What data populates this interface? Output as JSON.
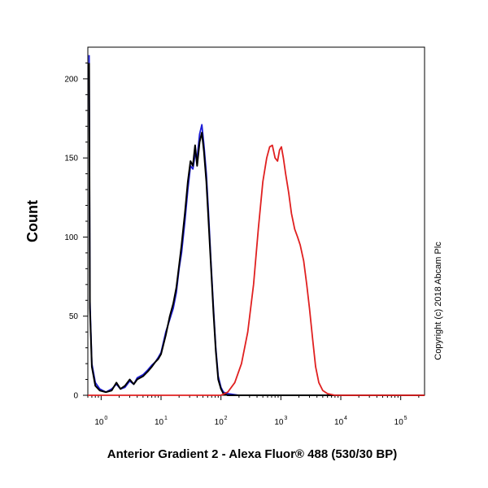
{
  "chart_data": {
    "type": "line",
    "xlabel": "Anterior Gradient 2 - Alexa Fluor® 488 (530/30 BP)",
    "ylabel": "Count",
    "x_scale": "log",
    "xlim": [
      0.6,
      250000
    ],
    "ylim": [
      0,
      220
    ],
    "x_ticks": [
      {
        "value": 1,
        "base": "10",
        "exp": "0"
      },
      {
        "value": 10,
        "base": "10",
        "exp": "1"
      },
      {
        "value": 100,
        "base": "10",
        "exp": "2"
      },
      {
        "value": 1000,
        "base": "10",
        "exp": "3"
      },
      {
        "value": 10000,
        "base": "10",
        "exp": "4"
      },
      {
        "value": 100000,
        "base": "10",
        "exp": "5"
      }
    ],
    "y_ticks": [
      0,
      50,
      100,
      150,
      200
    ],
    "series": [
      {
        "color": "#1c1cd6",
        "points": [
          [
            0.63,
            215
          ],
          [
            0.65,
            60
          ],
          [
            0.7,
            20
          ],
          [
            0.8,
            8
          ],
          [
            0.95,
            4
          ],
          [
            1.2,
            2
          ],
          [
            1.5,
            4
          ],
          [
            1.8,
            7
          ],
          [
            2.1,
            4
          ],
          [
            2.5,
            5
          ],
          [
            3.0,
            9
          ],
          [
            3.5,
            7
          ],
          [
            4.0,
            11
          ],
          [
            5.0,
            13
          ],
          [
            6.0,
            16
          ],
          [
            7.0,
            19
          ],
          [
            8.0,
            21
          ],
          [
            9.0,
            24
          ],
          [
            10.0,
            27
          ],
          [
            12.0,
            40
          ],
          [
            14.0,
            48
          ],
          [
            16.0,
            55
          ],
          [
            18.0,
            65
          ],
          [
            20.0,
            80
          ],
          [
            22.0,
            90
          ],
          [
            25.0,
            110
          ],
          [
            28.0,
            130
          ],
          [
            31.0,
            145
          ],
          [
            34.0,
            143
          ],
          [
            37.0,
            152
          ],
          [
            40.0,
            150
          ],
          [
            44.0,
            165
          ],
          [
            48.0,
            171
          ],
          [
            52.0,
            158
          ],
          [
            57.0,
            140
          ],
          [
            62.0,
            115
          ],
          [
            68.0,
            85
          ],
          [
            75.0,
            55
          ],
          [
            82.0,
            30
          ],
          [
            90.0,
            12
          ],
          [
            100.0,
            5
          ],
          [
            110.0,
            2
          ],
          [
            130.0,
            1
          ],
          [
            200.0,
            0
          ],
          [
            1000.0,
            0
          ],
          [
            10000.0,
            0
          ],
          [
            250000.0,
            0
          ]
        ]
      },
      {
        "color": "#000000",
        "points": [
          [
            0.63,
            210
          ],
          [
            0.65,
            55
          ],
          [
            0.7,
            18
          ],
          [
            0.8,
            6
          ],
          [
            0.95,
            3
          ],
          [
            1.2,
            2
          ],
          [
            1.5,
            3
          ],
          [
            1.8,
            8
          ],
          [
            2.1,
            4
          ],
          [
            2.5,
            6
          ],
          [
            3.0,
            10
          ],
          [
            3.5,
            7
          ],
          [
            4.0,
            10
          ],
          [
            5.0,
            12
          ],
          [
            6.0,
            15
          ],
          [
            7.0,
            18
          ],
          [
            8.0,
            21
          ],
          [
            9.0,
            23
          ],
          [
            10.0,
            26
          ],
          [
            12.0,
            38
          ],
          [
            14.0,
            50
          ],
          [
            16.0,
            58
          ],
          [
            18.0,
            68
          ],
          [
            20.0,
            82
          ],
          [
            22.0,
            95
          ],
          [
            25.0,
            115
          ],
          [
            28.0,
            135
          ],
          [
            31.0,
            148
          ],
          [
            34.0,
            145
          ],
          [
            37.0,
            158
          ],
          [
            40.0,
            145
          ],
          [
            44.0,
            160
          ],
          [
            48.0,
            166
          ],
          [
            52.0,
            154
          ],
          [
            57.0,
            135
          ],
          [
            62.0,
            110
          ],
          [
            68.0,
            82
          ],
          [
            75.0,
            52
          ],
          [
            82.0,
            28
          ],
          [
            90.0,
            10
          ],
          [
            100.0,
            4
          ],
          [
            110.0,
            1
          ],
          [
            130.0,
            0
          ],
          [
            200.0,
            0
          ],
          [
            1000.0,
            0
          ],
          [
            10000.0,
            0
          ],
          [
            250000.0,
            0
          ]
        ]
      },
      {
        "color": "#e02020",
        "points": [
          [
            0.6,
            0
          ],
          [
            100.0,
            0
          ],
          [
            130.0,
            2
          ],
          [
            170.0,
            8
          ],
          [
            220.0,
            20
          ],
          [
            280.0,
            40
          ],
          [
            350.0,
            70
          ],
          [
            420.0,
            105
          ],
          [
            500.0,
            135
          ],
          [
            580.0,
            150
          ],
          [
            650.0,
            157
          ],
          [
            720.0,
            158
          ],
          [
            800.0,
            150
          ],
          [
            880.0,
            148
          ],
          [
            950.0,
            155
          ],
          [
            1020.0,
            157
          ],
          [
            1100.0,
            150
          ],
          [
            1200.0,
            140
          ],
          [
            1350.0,
            128
          ],
          [
            1500.0,
            115
          ],
          [
            1700.0,
            105
          ],
          [
            1900.0,
            100
          ],
          [
            2100.0,
            95
          ],
          [
            2400.0,
            85
          ],
          [
            2700.0,
            70
          ],
          [
            3000.0,
            55
          ],
          [
            3400.0,
            35
          ],
          [
            3800.0,
            18
          ],
          [
            4300.0,
            8
          ],
          [
            5000.0,
            3
          ],
          [
            6000.0,
            1
          ],
          [
            8000.0,
            0
          ],
          [
            250000.0,
            0
          ]
        ]
      }
    ]
  },
  "copyright": "Copyright (c) 2018 Abcam Plc"
}
